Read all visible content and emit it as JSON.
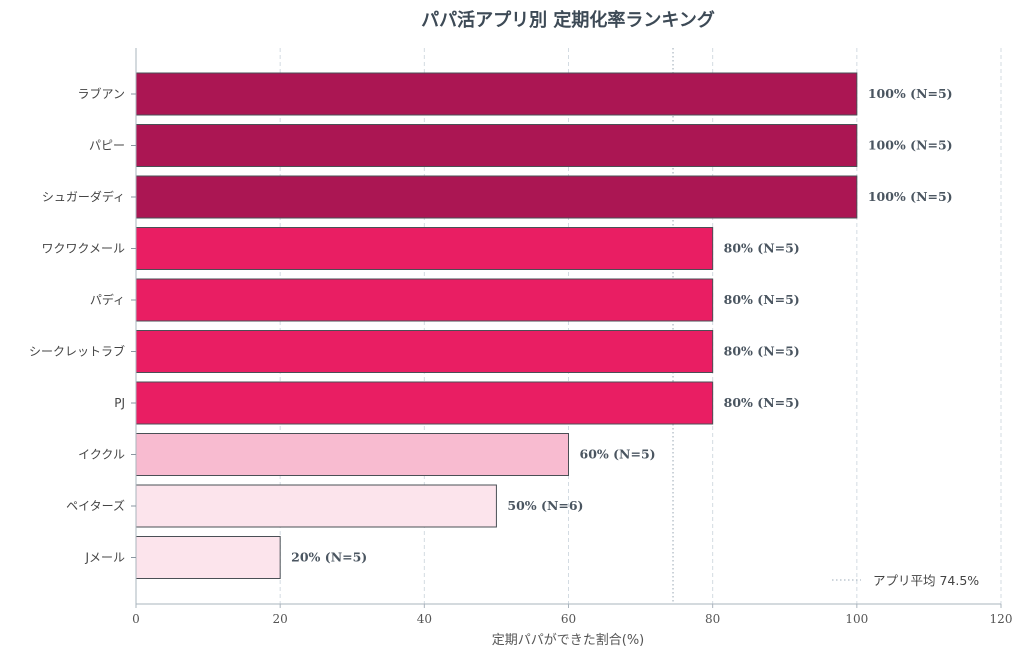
{
  "chart_data": {
    "type": "bar",
    "orientation": "horizontal",
    "title": "パパ活アプリ別 定期化率ランキング",
    "xlabel": "定期パパができた割合(%)",
    "ylabel": "",
    "xlim": [
      0,
      120
    ],
    "xticks": [
      0,
      20,
      40,
      60,
      80,
      100,
      120
    ],
    "grid": "vertical-dashed",
    "categories": [
      "ラブアン",
      "パピー",
      "シュガーダディ",
      "ワクワクメール",
      "パディ",
      "シークレットラブ",
      "PJ",
      "イククル",
      "ペイターズ",
      "Jメール"
    ],
    "values": [
      100,
      100,
      100,
      80,
      80,
      80,
      80,
      60,
      50,
      20
    ],
    "n": [
      5,
      5,
      5,
      5,
      5,
      5,
      5,
      5,
      6,
      5
    ],
    "data_labels": [
      "100% (N=5)",
      "100% (N=5)",
      "100% (N=5)",
      "80% (N=5)",
      "80% (N=5)",
      "80% (N=5)",
      "80% (N=5)",
      "60% (N=5)",
      "50% (N=6)",
      "20% (N=5)"
    ],
    "colors": [
      "#ab1653",
      "#ab1653",
      "#ab1653",
      "#e91e63",
      "#e91e63",
      "#e91e63",
      "#e91e63",
      "#f8bbd0",
      "#fce4ec",
      "#fce4ec"
    ],
    "reference_line": {
      "value": 74.5,
      "style": "dotted",
      "label": "アプリ平均 74.5%"
    },
    "legend_position": "bottom-right"
  }
}
